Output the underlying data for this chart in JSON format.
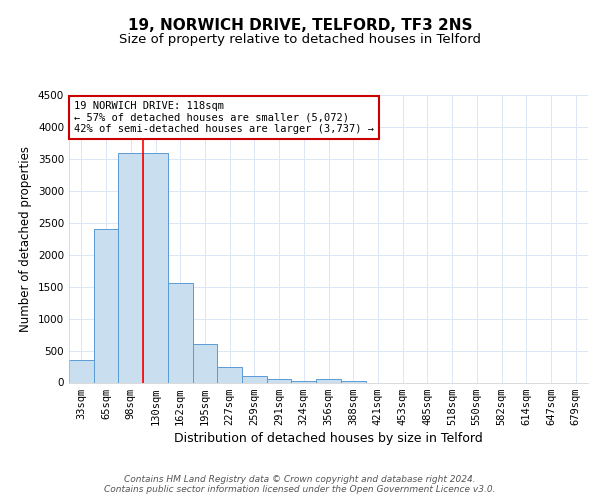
{
  "title1": "19, NORWICH DRIVE, TELFORD, TF3 2NS",
  "title2": "Size of property relative to detached houses in Telford",
  "xlabel": "Distribution of detached houses by size in Telford",
  "ylabel": "Number of detached properties",
  "bin_labels": [
    "33sqm",
    "65sqm",
    "98sqm",
    "130sqm",
    "162sqm",
    "195sqm",
    "227sqm",
    "259sqm",
    "291sqm",
    "324sqm",
    "356sqm",
    "388sqm",
    "421sqm",
    "453sqm",
    "485sqm",
    "518sqm",
    "550sqm",
    "582sqm",
    "614sqm",
    "647sqm",
    "679sqm"
  ],
  "bar_values": [
    350,
    2400,
    3600,
    3600,
    1550,
    600,
    250,
    100,
    50,
    20,
    50,
    20,
    0,
    0,
    0,
    0,
    0,
    0,
    0,
    0,
    0
  ],
  "bar_color": "#c9dff0",
  "bar_edge_color": "#5b9bd5",
  "ylim": [
    0,
    4500
  ],
  "yticks": [
    0,
    500,
    1000,
    1500,
    2000,
    2500,
    3000,
    3500,
    4000,
    4500
  ],
  "red_line_bin_index": 3,
  "annotation_text": "19 NORWICH DRIVE: 118sqm\n← 57% of detached houses are smaller (5,072)\n42% of semi-detached houses are larger (3,737) →",
  "annotation_box_color": "#ffffff",
  "annotation_box_edge": "#cc0000",
  "footer": "Contains HM Land Registry data © Crown copyright and database right 2024.\nContains public sector information licensed under the Open Government Licence v3.0.",
  "bg_color": "#ffffff",
  "grid_color": "#dce6f5",
  "title1_fontsize": 11,
  "title2_fontsize": 9.5,
  "xlabel_fontsize": 9,
  "ylabel_fontsize": 8.5,
  "tick_fontsize": 7.5,
  "footer_fontsize": 6.5
}
